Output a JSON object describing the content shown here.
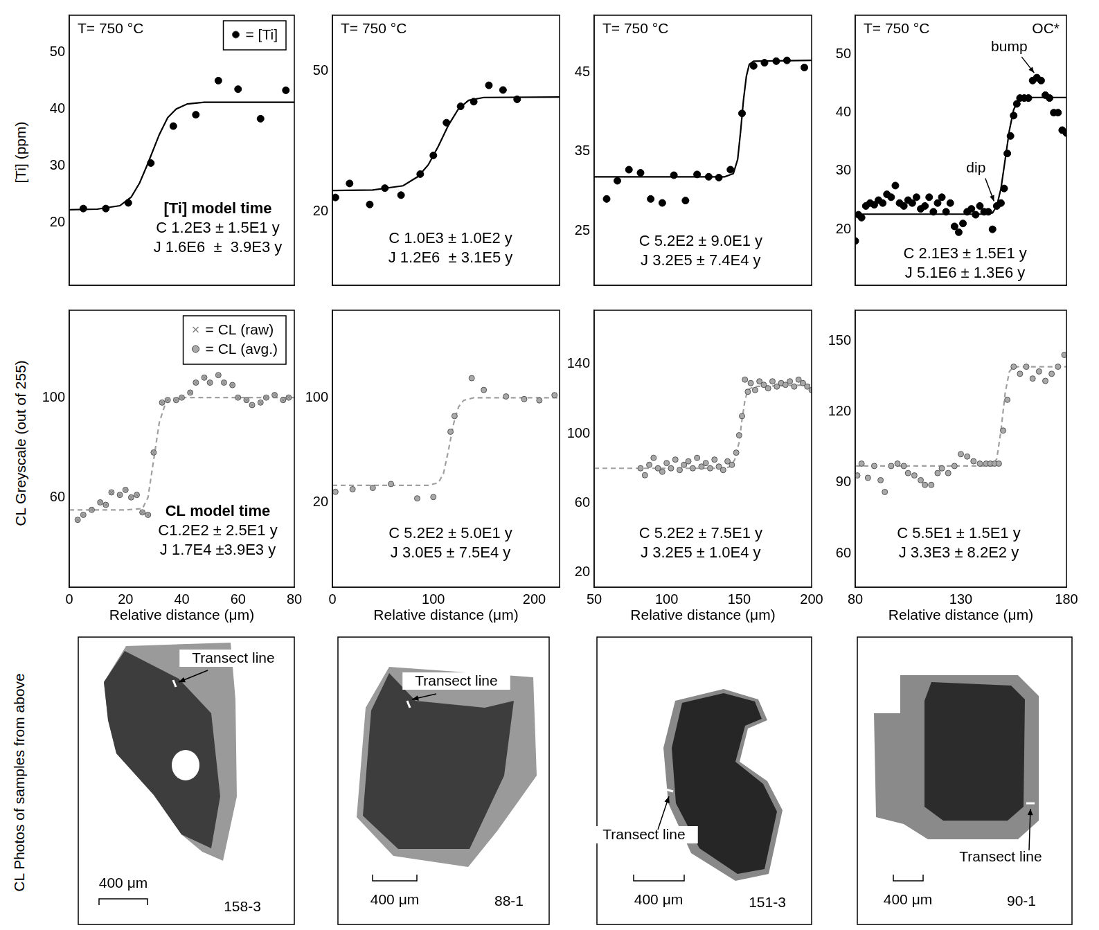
{
  "row_titles": {
    "ti_axis": "[Ti] (ppm)",
    "cl_axis": "CL Greyscale (out of 255)",
    "photos": "CL Photos of samples from above"
  },
  "chart_data": [
    {
      "type": "scatter",
      "temperature": "T= 750 °C",
      "model_title": "[Ti] model time",
      "model_times": [
        "C 1.2E3 ± 1.5E1 y",
        "J 1.6E6  ±  3.9E3 y"
      ],
      "xlim": [
        0,
        80
      ],
      "xticks": [
        0,
        20,
        40,
        60,
        80
      ],
      "ylim": [
        9,
        56.5
      ],
      "yticks": [
        20,
        30,
        40,
        50
      ],
      "tick_labels": "y",
      "grid": false,
      "legend": "upper right",
      "series": [
        {
          "name": "= [Ti]",
          "color": "#000000",
          "marker": "circle",
          "x": [
            5,
            13,
            21,
            29,
            37,
            45,
            53,
            60,
            68,
            77
          ],
          "values": [
            22.5,
            22.5,
            23.5,
            30.5,
            37,
            39,
            45,
            43.5,
            38.3,
            43.3
          ]
        },
        {
          "type": "line",
          "line_style": "solid",
          "marker": "none",
          "color": "#000000",
          "x": [
            0,
            10,
            18,
            22,
            25,
            28,
            30,
            32,
            35,
            38,
            42,
            48,
            55,
            65,
            80
          ],
          "values": [
            22.3,
            22.4,
            23,
            24.5,
            27,
            30.5,
            33,
            35.5,
            38.5,
            40,
            40.9,
            41.2,
            41.2,
            41.2,
            41.2
          ]
        }
      ]
    },
    {
      "type": "scatter",
      "model_title": "CL model time",
      "model_times": [
        "C1.2E2 ± 2.5E1 y",
        "J 1.7E4 ±3.9E3 y"
      ],
      "x_label": "Relative distance (μm)",
      "xlim": [
        0,
        80
      ],
      "xticks": [
        0,
        20,
        40,
        60,
        80
      ],
      "ylim": [
        24,
        135
      ],
      "yticks": [
        60,
        100
      ],
      "grid": false,
      "legend": "upper right",
      "series": [
        {
          "name": "= CL (raw)",
          "color": "#808080",
          "marker": "cross",
          "x": [
            3,
            5,
            8,
            11,
            13,
            15,
            18,
            20,
            22,
            24,
            26,
            28,
            30,
            33,
            35,
            38,
            40,
            43,
            45,
            48,
            50,
            53,
            55,
            58,
            60,
            63,
            65,
            68,
            70,
            73,
            76,
            78
          ],
          "values": [
            51,
            53,
            55,
            58,
            57,
            62,
            61,
            63,
            60,
            61,
            54,
            53,
            78,
            98,
            99,
            99,
            100,
            102,
            106,
            108,
            106,
            109,
            106,
            105,
            100,
            99,
            97,
            98,
            100,
            101,
            99,
            100
          ]
        },
        {
          "name": "= CL (avg.)",
          "color": "#a8a8a8",
          "marker": "circle",
          "x": [
            3,
            5,
            8,
            11,
            13,
            15,
            18,
            20,
            22,
            24,
            26,
            28,
            30,
            33,
            35,
            38,
            40,
            43,
            45,
            48,
            50,
            53,
            55,
            58,
            60,
            63,
            65,
            68,
            70,
            73,
            76,
            78
          ],
          "values": [
            51,
            53,
            55,
            58,
            57,
            62,
            61,
            63,
            60,
            61,
            54,
            53,
            78,
            98,
            99,
            99,
            100,
            102,
            106,
            108,
            106,
            109,
            106,
            105,
            100,
            99,
            97,
            98,
            100,
            101,
            99,
            100
          ]
        },
        {
          "type": "line",
          "line_style": "dashed",
          "marker": "none",
          "color": "#a0a0a0",
          "x": [
            0,
            20,
            26,
            28,
            30,
            32,
            34,
            36,
            40,
            80
          ],
          "values": [
            55,
            55,
            55.5,
            60,
            75,
            90,
            97,
            99.5,
            100,
            100
          ]
        }
      ]
    },
    {
      "type": "scatter",
      "temperature": "T= 750 °C",
      "model_times": [
        "C 1.0E3 ± 1.0E2 y",
        "J 1.2E6  ± 3.1E5 y"
      ],
      "xlim": [
        0,
        225
      ],
      "xticks": [
        0,
        100,
        200
      ],
      "ylim": [
        4.2,
        62
      ],
      "yticks": [
        20,
        50
      ],
      "tick_labels": "y",
      "grid": false,
      "series": [
        {
          "color": "#000000",
          "marker": "circle",
          "x": [
            3,
            17,
            37,
            52,
            68,
            87,
            100,
            113,
            127,
            140,
            155,
            169,
            183
          ],
          "values": [
            23,
            26,
            21.5,
            25,
            23.5,
            28,
            32,
            39,
            42.5,
            43.5,
            47,
            46,
            44
          ]
        },
        {
          "type": "line",
          "line_style": "solid",
          "marker": "none",
          "color": "#000000",
          "x": [
            0,
            40,
            70,
            85,
            95,
            105,
            115,
            125,
            135,
            150,
            225
          ],
          "values": [
            24.5,
            24.6,
            25.5,
            27.5,
            30,
            34,
            38.5,
            42,
            43.8,
            44.4,
            44.5
          ]
        }
      ]
    },
    {
      "type": "scatter",
      "model_times": [
        "C 5.2E2 ± 5.0E1 y",
        "J 3.0E5 ± 7.5E4 y"
      ],
      "x_label": "Relative distance (μm)",
      "xlim": [
        0,
        225
      ],
      "xticks": [
        0,
        100,
        200
      ],
      "ylim": [
        -45,
        167
      ],
      "yticks": [
        20,
        100
      ],
      "grid": false,
      "series": [
        {
          "color": "#a8a8a8",
          "marker": "circle",
          "x": [
            3,
            20,
            40,
            58,
            84,
            100,
            117,
            121,
            138,
            150,
            172,
            190,
            205,
            220
          ],
          "values": [
            28,
            30,
            31,
            34,
            23,
            24,
            74,
            86,
            115,
            106,
            101,
            99,
            98,
            102
          ]
        },
        {
          "type": "line",
          "line_style": "dashed",
          "marker": "none",
          "color": "#a0a0a0",
          "x": [
            0,
            95,
            105,
            110,
            115,
            120,
            125,
            130,
            140,
            225
          ],
          "values": [
            33,
            33,
            35,
            42,
            60,
            80,
            93,
            98,
            100,
            100
          ]
        }
      ]
    },
    {
      "type": "scatter",
      "temperature": "T= 750 °C",
      "model_times": [
        "C 5.2E2 ± 9.0E1 y",
        "J 3.2E5 ± 7.4E4 y"
      ],
      "xlim": [
        50,
        200
      ],
      "xticks": [
        50,
        100,
        150,
        200
      ],
      "ylim": [
        18.1,
        52.2
      ],
      "yticks": [
        25,
        35,
        45
      ],
      "tick_labels": "y",
      "grid": false,
      "series": [
        {
          "color": "#000000",
          "marker": "circle",
          "x": [
            58.6,
            66,
            74,
            82,
            89,
            97,
            105,
            113,
            121,
            129,
            136,
            144,
            152,
            160,
            167.5,
            175.6,
            183,
            195
          ],
          "values": [
            29,
            31.3,
            32.7,
            32.3,
            29,
            28.5,
            32,
            28.8,
            32.1,
            31.8,
            31.7,
            32.7,
            39.8,
            45.8,
            46.2,
            46.4,
            46.5,
            45.6
          ]
        },
        {
          "type": "line",
          "line_style": "solid",
          "marker": "none",
          "color": "#000000",
          "x": [
            50,
            140,
            146,
            149,
            151,
            153,
            155,
            157,
            160,
            200
          ],
          "values": [
            31.8,
            31.8,
            32.2,
            34,
            37.5,
            41.5,
            44.5,
            46,
            46.4,
            46.5
          ]
        }
      ]
    },
    {
      "type": "scatter",
      "model_times": [
        "C 5.2E2 ± 7.5E1 y",
        "J 3.2E5 ± 1.0E4 y"
      ],
      "x_label": "Relative distance (μm)",
      "xlim": [
        50,
        200
      ],
      "xticks": [
        50,
        100,
        150,
        200
      ],
      "ylim": [
        11.6,
        170.9
      ],
      "yticks": [
        20,
        60,
        100,
        140
      ],
      "grid": false,
      "series": [
        {
          "color": "#a8a8a8",
          "marker": "circle",
          "x": [
            82,
            85,
            88,
            91,
            94,
            97,
            100,
            103,
            106,
            109,
            112,
            115,
            118,
            121,
            124,
            127,
            130,
            133,
            136,
            139,
            142,
            145,
            148,
            150,
            152,
            154,
            156,
            158,
            161,
            164,
            167,
            170,
            173,
            176,
            179,
            182,
            185,
            188,
            191,
            194,
            197,
            200
          ],
          "values": [
            80,
            76,
            82,
            86,
            80,
            78,
            83,
            80,
            85,
            79,
            82,
            84,
            80,
            86,
            81,
            83,
            80,
            85,
            81,
            79,
            84,
            82,
            89,
            99,
            110,
            131,
            124,
            129,
            125,
            130,
            128,
            126,
            130,
            127,
            129,
            128,
            130,
            127,
            131,
            129,
            127,
            125
          ]
        },
        {
          "type": "line",
          "line_style": "dashed",
          "marker": "none",
          "color": "#a0a0a0",
          "x": [
            50,
            140,
            144,
            147,
            150,
            152,
            154,
            156,
            160,
            200
          ],
          "values": [
            80,
            80,
            81,
            85,
            95,
            108,
            119,
            125,
            127,
            128
          ]
        }
      ]
    },
    {
      "type": "scatter",
      "temperature": "T= 750 °C",
      "flag": "OC*",
      "model_times": [
        "C 2.1E3 ± 1.5E1 y",
        "J 5.1E6 ± 1.3E6 y"
      ],
      "xlim": [
        80,
        180
      ],
      "xticks": [
        80,
        130,
        180
      ],
      "ylim": [
        10.4,
        56.7
      ],
      "yticks": [
        20,
        30,
        40,
        50
      ],
      "tick_labels": "y",
      "grid": false,
      "annotations": [
        {
          "text": "bump",
          "x": 166,
          "y": 46
        },
        {
          "text": "dip",
          "x": 147,
          "y": 24
        }
      ],
      "series": [
        {
          "color": "#000000",
          "marker": "circle",
          "x": [
            80,
            81.5,
            83,
            85,
            87,
            89,
            91,
            93,
            95,
            97,
            99,
            101,
            103,
            105,
            107,
            109,
            111,
            113,
            115,
            117,
            119,
            121,
            123,
            125,
            127,
            129,
            131,
            133,
            135,
            137,
            139,
            141,
            143,
            145,
            147,
            149,
            150.5,
            152,
            153.5,
            155,
            156.5,
            158,
            160,
            162,
            164,
            166,
            168,
            170,
            172,
            174,
            176,
            178,
            180
          ],
          "values": [
            18,
            22.5,
            22,
            24,
            24.5,
            24.2,
            25,
            24.5,
            26,
            25.5,
            27.5,
            24.5,
            24,
            25,
            24.5,
            25.5,
            23.5,
            24,
            25.5,
            23,
            24.5,
            25.5,
            23,
            24.5,
            20.5,
            19.5,
            21,
            23,
            23.5,
            22.5,
            24,
            23,
            23,
            20,
            24,
            24.5,
            27,
            33,
            36,
            39.5,
            41.5,
            42.5,
            42.5,
            42.5,
            45.5,
            46,
            45.5,
            43,
            42.5,
            40,
            40,
            37,
            36.5
          ]
        },
        {
          "type": "line",
          "line_style": "solid",
          "marker": "none",
          "color": "#000000",
          "x": [
            80,
            140,
            145,
            147,
            149,
            151,
            153,
            155,
            157,
            160,
            180
          ],
          "values": [
            22.6,
            22.6,
            22.8,
            24,
            27,
            32,
            37,
            40.5,
            42,
            42.6,
            42.6
          ]
        }
      ]
    },
    {
      "type": "scatter",
      "model_times": [
        "C 5.5E1 ± 1.5E1 y",
        "J 3.3E3 ± 8.2E2 y"
      ],
      "x_label": "Relative distance (μm)",
      "xlim": [
        80,
        180
      ],
      "xticks": [
        80,
        130,
        180
      ],
      "ylim": [
        45.7,
        162.9
      ],
      "yticks": [
        60,
        90,
        120,
        150
      ],
      "grid": false,
      "series": [
        {
          "color": "#a8a8a8",
          "marker": "circle",
          "x": [
            81,
            83,
            86,
            89,
            92,
            94,
            97,
            100,
            103,
            105,
            108,
            111,
            113,
            116,
            119,
            121,
            124,
            127,
            130,
            133,
            136,
            139,
            142,
            144,
            146,
            148,
            150,
            152,
            155,
            158,
            161,
            164,
            167,
            170,
            173,
            176,
            179
          ],
          "values": [
            93,
            98,
            92,
            97,
            91,
            86,
            97,
            98,
            97,
            94,
            93,
            91,
            89,
            89,
            94,
            96,
            94,
            97,
            102,
            101,
            99,
            98,
            98,
            98,
            98,
            98,
            112,
            125,
            139,
            136,
            139,
            134,
            137,
            133,
            136,
            139,
            144
          ]
        },
        {
          "type": "line",
          "line_style": "dashed",
          "marker": "none",
          "color": "#a0a0a0",
          "x": [
            80,
            145,
            147,
            149,
            151,
            153,
            155,
            180
          ],
          "values": [
            97,
            97,
            100,
            112,
            128,
            137,
            139,
            139
          ]
        }
      ]
    }
  ],
  "photos": [
    {
      "sample": "158-3",
      "scale_bar": "400 μm",
      "transect_label": "Transect line"
    },
    {
      "sample": "88-1",
      "scale_bar": "400 μm",
      "transect_label": "Transect line"
    },
    {
      "sample": "151-3",
      "scale_bar": "400 μm",
      "transect_label": "Transect line"
    },
    {
      "sample": "90-1",
      "scale_bar": "400 μm",
      "transect_label": "Transect line"
    }
  ]
}
